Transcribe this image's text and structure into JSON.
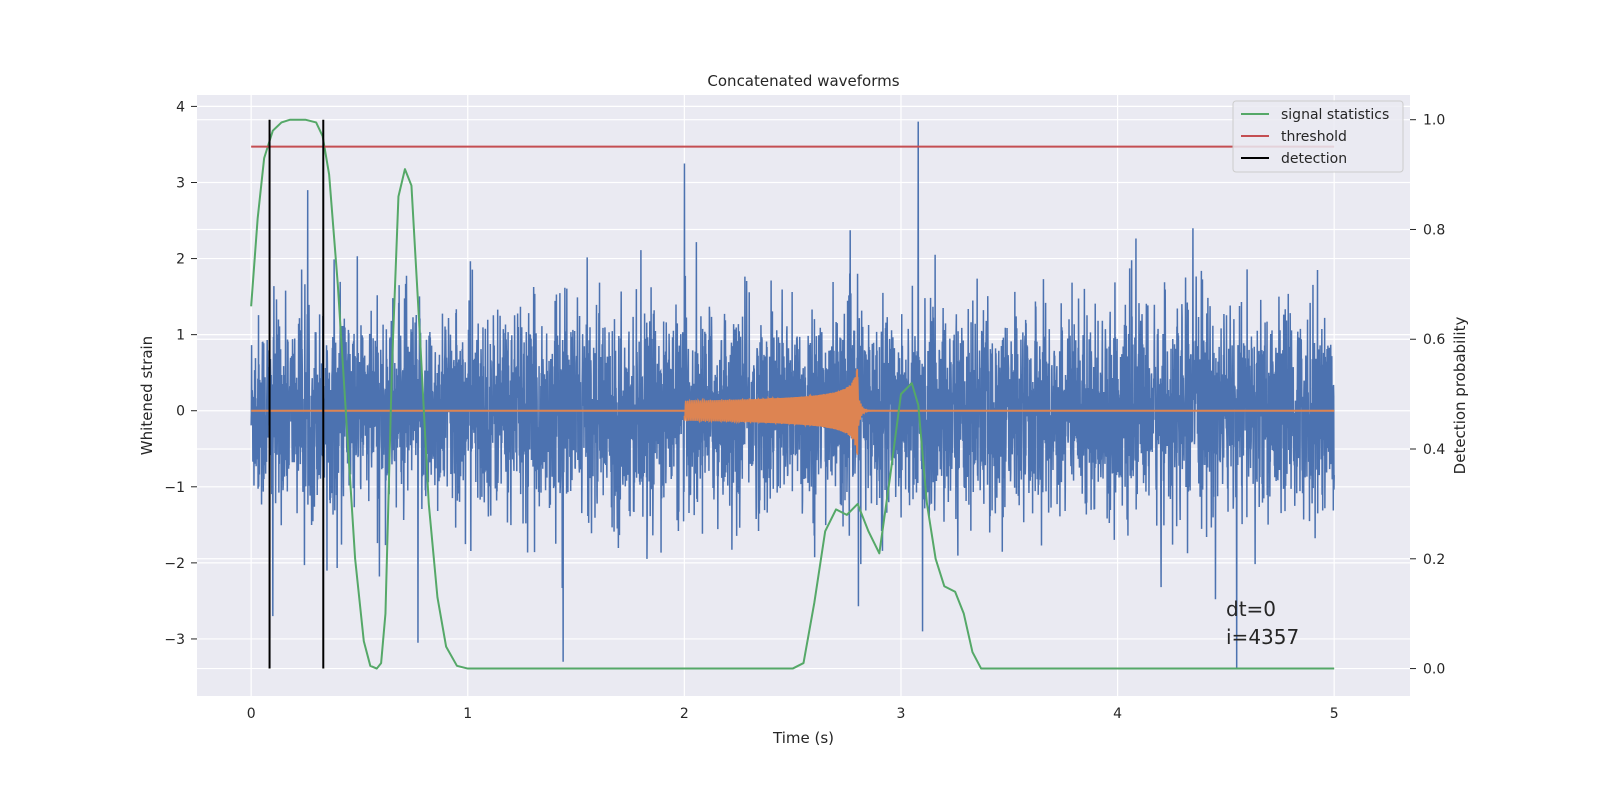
{
  "chart_data": {
    "type": "line",
    "title": "Concatenated waveforms",
    "xlabel": "Time (s)",
    "ylabel": "Whitened strain",
    "y2label": "Detection probability",
    "xlim": [
      -0.25,
      5.35
    ],
    "ylim": [
      -3.75,
      4.15
    ],
    "y2lim": [
      -0.05,
      1.045
    ],
    "xticks": [
      0,
      1,
      2,
      3,
      4,
      5
    ],
    "yticks": [
      -3,
      -2,
      -1,
      0,
      1,
      2,
      3,
      4
    ],
    "y2ticks": [
      0.0,
      0.2,
      0.4,
      0.6,
      0.8,
      1.0
    ],
    "xtick_labels": [
      "0",
      "1",
      "2",
      "3",
      "4",
      "5"
    ],
    "ytick_labels": [
      "−3",
      "−2",
      "−1",
      "0",
      "1",
      "2",
      "3",
      "4"
    ],
    "y2tick_labels": [
      "0.0",
      "0.2",
      "0.4",
      "0.6",
      "0.8",
      "1.0"
    ],
    "grid": true,
    "legend_position": "top-right",
    "legend": [
      "signal statistics",
      "threshold",
      "detection"
    ],
    "colors": {
      "noise": "#4c72b0",
      "waveform": "#dd8452",
      "signal_statistics": "#55a868",
      "threshold": "#c44e52",
      "detection": "#000000",
      "background": "#eaeaf2"
    },
    "series": [
      {
        "name": "signal statistics",
        "axis": "right",
        "x": [
          0.0,
          0.03,
          0.06,
          0.1,
          0.14,
          0.18,
          0.25,
          0.3,
          0.33,
          0.36,
          0.4,
          0.44,
          0.48,
          0.52,
          0.55,
          0.58,
          0.6,
          0.62,
          0.65,
          0.68,
          0.71,
          0.74,
          0.78,
          0.82,
          0.86,
          0.9,
          0.95,
          1.0,
          1.05,
          1.2,
          1.5,
          1.8,
          2.1,
          2.4,
          2.5,
          2.55,
          2.6,
          2.65,
          2.7,
          2.75,
          2.8,
          2.85,
          2.9,
          2.95,
          3.0,
          3.05,
          3.08,
          3.12,
          3.16,
          3.2,
          3.25,
          3.29,
          3.33,
          3.37,
          3.5,
          4.0,
          4.5,
          5.0
        ],
        "values": [
          0.66,
          0.82,
          0.93,
          0.98,
          0.995,
          1.0,
          1.0,
          0.995,
          0.97,
          0.9,
          0.7,
          0.45,
          0.2,
          0.05,
          0.005,
          0.0,
          0.01,
          0.1,
          0.55,
          0.86,
          0.91,
          0.88,
          0.6,
          0.3,
          0.13,
          0.04,
          0.005,
          0.0,
          0.0,
          0.0,
          0.0,
          0.0,
          0.0,
          0.0,
          0.0,
          0.01,
          0.12,
          0.25,
          0.29,
          0.28,
          0.3,
          0.25,
          0.21,
          0.35,
          0.5,
          0.52,
          0.48,
          0.3,
          0.2,
          0.15,
          0.14,
          0.1,
          0.03,
          0.0,
          0.0,
          0.0,
          0.0,
          0.0
        ]
      },
      {
        "name": "threshold",
        "axis": "right",
        "x": [
          0.0,
          5.0
        ],
        "values": [
          0.951,
          0.951
        ]
      },
      {
        "name": "detection",
        "axis": "right",
        "type": "vlines",
        "x": [
          0.085,
          0.333
        ],
        "range": [
          0.0,
          1.0
        ]
      }
    ],
    "signals": [
      {
        "kind": "noise",
        "axis": "left",
        "x_range": [
          0.0,
          5.0
        ],
        "typical_amplitude": 1.5,
        "peaks": [
          {
            "x": 3.08,
            "y": 3.8
          },
          {
            "x": 4.55,
            "y": -3.4
          },
          {
            "x": 1.44,
            "y": -3.3
          },
          {
            "x": 0.77,
            "y": -3.05
          },
          {
            "x": 0.1,
            "y": -2.7
          },
          {
            "x": 3.1,
            "y": -2.9
          },
          {
            "x": 2.0,
            "y": 3.25
          }
        ]
      },
      {
        "kind": "waveform",
        "axis": "left",
        "x_range": [
          2.0,
          2.8
        ],
        "peak_amplitude": 0.55,
        "peak_min": -0.7
      }
    ],
    "annotations": [
      "dt=0",
      "i=4357"
    ]
  }
}
